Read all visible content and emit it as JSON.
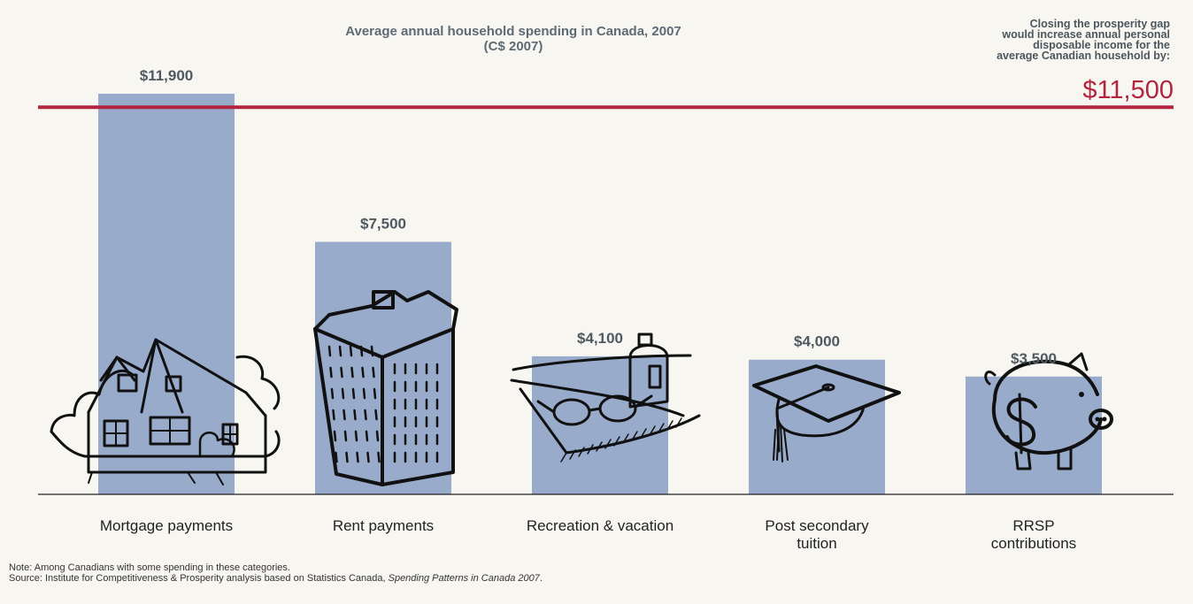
{
  "title_line1": "Average annual household spending in Canada, 2007",
  "title_line2": "(C$ 2007)",
  "callout": {
    "line1": "Closing the prosperity gap",
    "line2": "would increase annual personal",
    "line3": "disposable income for the",
    "line4": "average Canadian household by:",
    "value": "$11,500"
  },
  "footnote": {
    "note": "Note: Among Canadians with some spending in these categories.",
    "source_prefix": "Source: Institute for Competitiveness & Prosperity analysis based on Statistics Canada, ",
    "source_title": "Spending Patterns in Canada 2007",
    "source_suffix": "."
  },
  "colors": {
    "bar": "#98abcb",
    "reference_line": "#b3243f",
    "background": "#f8f6f1"
  },
  "chart_data": {
    "type": "bar",
    "categories": [
      [
        "Mortgage payments"
      ],
      [
        "Rent payments"
      ],
      [
        "Recreation & vacation"
      ],
      [
        "Post secondary",
        "tuition"
      ],
      [
        "RRSP",
        "contributions"
      ]
    ],
    "values": [
      11900,
      7500,
      4100,
      4000,
      3500
    ],
    "value_labels": [
      "$11,900",
      "$7,500",
      "$4,100",
      "$4,000",
      "$3,500"
    ],
    "icons": [
      "house-icon",
      "apartment-building-icon",
      "beach-sunglasses-icon",
      "graduation-cap-icon",
      "piggy-bank-icon"
    ],
    "reference_line": {
      "value": 11500,
      "label": "$11,500"
    },
    "ylim": [
      0,
      12000
    ],
    "xlabel": "",
    "ylabel": "",
    "grid": false
  }
}
